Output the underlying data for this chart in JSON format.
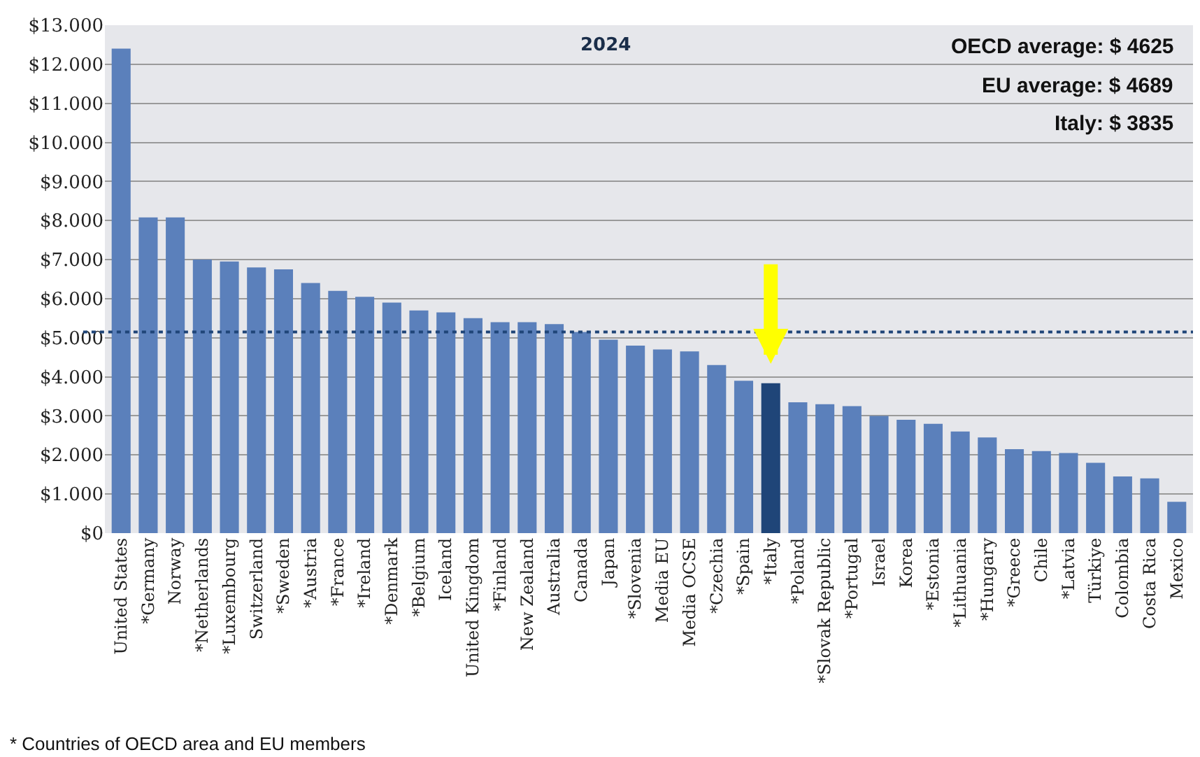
{
  "chart_data": {
    "type": "bar",
    "categories": [
      "United States",
      "*Germany",
      "Norway",
      "*Netherlands",
      "*Luxembourg",
      "Switzerland",
      "*Sweden",
      "*Austria",
      "*France",
      "*Ireland",
      "*Denmark",
      "*Belgium",
      "Iceland",
      "United Kingdom",
      "*Finland",
      "New Zealand",
      "Australia",
      "Canada",
      "Japan",
      "*Slovenia",
      "Media EU",
      "Media OCSE",
      "*Czechia",
      "*Spain",
      "*Italy",
      "*Poland",
      "*Slovak Republic",
      "*Portugal",
      "Israel",
      "Korea",
      "*Estonia",
      "*Lithuania",
      "*Hungary",
      "*Greece",
      "Chile",
      "*Latvia",
      "Türkiye",
      "Colombia",
      "Costa Rica",
      "Mexico"
    ],
    "values": [
      12400,
      8080,
      8080,
      7000,
      6950,
      6800,
      6750,
      6400,
      6200,
      6050,
      5900,
      5700,
      5650,
      5500,
      5400,
      5400,
      5350,
      5150,
      4950,
      4800,
      4700,
      4650,
      4300,
      3900,
      3835,
      3350,
      3300,
      3250,
      3000,
      2900,
      2800,
      2600,
      2450,
      2150,
      2100,
      2050,
      1800,
      1450,
      1400,
      800
    ],
    "colors": [
      "#5b80bb",
      "#5b80bb",
      "#5b80bb",
      "#5b80bb",
      "#5b80bb",
      "#5b80bb",
      "#5b80bb",
      "#5b80bb",
      "#5b80bb",
      "#5b80bb",
      "#5b80bb",
      "#5b80bb",
      "#5b80bb",
      "#5b80bb",
      "#5b80bb",
      "#5b80bb",
      "#5b80bb",
      "#5b80bb",
      "#5b80bb",
      "#5b80bb",
      "#5b80bb",
      "#5b80bb",
      "#5b80bb",
      "#5b80bb",
      "#1f4578",
      "#5b80bb",
      "#5b80bb",
      "#5b80bb",
      "#5b80bb",
      "#5b80bb",
      "#5b80bb",
      "#5b80bb",
      "#5b80bb",
      "#5b80bb",
      "#5b80bb",
      "#5b80bb",
      "#5b80bb",
      "#5b80bb",
      "#5b80bb",
      "#5b80bb"
    ],
    "ylim": [
      0,
      13000
    ],
    "yticks": [
      {
        "value": 0,
        "label": "$0"
      },
      {
        "value": 1000,
        "label": "$1.000"
      },
      {
        "value": 2000,
        "label": "$2.000"
      },
      {
        "value": 3000,
        "label": "$3.000"
      },
      {
        "value": 4000,
        "label": "$4.000"
      },
      {
        "value": 5000,
        "label": "$5.000"
      },
      {
        "value": 6000,
        "label": "$6.000"
      },
      {
        "value": 7000,
        "label": "$7.000"
      },
      {
        "value": 8000,
        "label": "$8.000"
      },
      {
        "value": 9000,
        "label": "$9.000"
      },
      {
        "value": 10000,
        "label": "$10.000"
      },
      {
        "value": 11000,
        "label": "$11.000"
      },
      {
        "value": 12000,
        "label": "$12.000"
      },
      {
        "value": 13000,
        "label": "$13.000"
      }
    ],
    "grid": "y",
    "ref_lines": [
      {
        "axis": "y",
        "value": 5150,
        "color": "#1f4578",
        "line_style": "dotted"
      }
    ],
    "annotations": [
      "2024",
      "OECD average: $ 4625",
      "EU average: $ 4689",
      "Italy: $ 3835",
      "* Countries of OECD area and EU members"
    ]
  }
}
